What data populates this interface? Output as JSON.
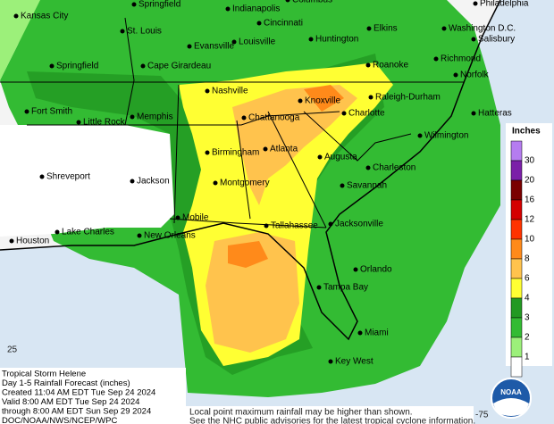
{
  "map": {
    "cities": [
      {
        "label": "Kansas City"
      },
      {
        "label": "Springfield"
      },
      {
        "label": "Indianapolis"
      },
      {
        "label": "Columbus"
      },
      {
        "label": "Philadelphia"
      },
      {
        "label": "St. Louis"
      },
      {
        "label": "Cincinnati"
      },
      {
        "label": "Elkins"
      },
      {
        "label": "Washington D.C."
      },
      {
        "label": "Salisbury"
      },
      {
        "label": "Evansville"
      },
      {
        "label": "Louisville"
      },
      {
        "label": "Huntington"
      },
      {
        "label": "Springfield"
      },
      {
        "label": "Cape Girardeau"
      },
      {
        "label": "Roanoke"
      },
      {
        "label": "Richmond"
      },
      {
        "label": "Norfolk"
      },
      {
        "label": "Nashville"
      },
      {
        "label": "Knoxville"
      },
      {
        "label": "Fort Smith"
      },
      {
        "label": "Little Rock"
      },
      {
        "label": "Memphis"
      },
      {
        "label": "Chattanooga"
      },
      {
        "label": "Charlotte"
      },
      {
        "label": "Raleigh-Durham"
      },
      {
        "label": "Hatteras"
      },
      {
        "label": "Wilmington"
      },
      {
        "label": "Birmingham"
      },
      {
        "label": "Atlanta"
      },
      {
        "label": "Augusta"
      },
      {
        "label": "Charleston"
      },
      {
        "label": "Shreveport"
      },
      {
        "label": "Jackson"
      },
      {
        "label": "Montgomery"
      },
      {
        "label": "Savannah"
      },
      {
        "label": "Mobile"
      },
      {
        "label": "Tallahassee"
      },
      {
        "label": "Jacksonville"
      },
      {
        "label": "Lake Charles"
      },
      {
        "label": "New Orleans"
      },
      {
        "label": "Houston"
      },
      {
        "label": "Orlando"
      },
      {
        "label": "Tampa Bay"
      },
      {
        "label": "Miami"
      },
      {
        "label": "Key West"
      }
    ],
    "legend": {
      "title": "Inches",
      "items": [
        {
          "value": 30,
          "color": "#b57cf0"
        },
        {
          "value": 20,
          "color": "#7b1fa8"
        },
        {
          "value": 16,
          "color": "#7a0000"
        },
        {
          "value": 12,
          "color": "#d40000"
        },
        {
          "value": 10,
          "color": "#ff3300"
        },
        {
          "value": 8,
          "color": "#ff8a1a"
        },
        {
          "value": 6,
          "color": "#ffc34d"
        },
        {
          "value": 4,
          "color": "#ffff33"
        },
        {
          "value": 3,
          "color": "#229922"
        },
        {
          "value": 2,
          "color": "#33bb33"
        },
        {
          "value": 1,
          "color": "#9cf07a"
        }
      ]
    },
    "info": {
      "lines": [
        "Tropical Storm Helene",
        "Day 1-5 Rainfall Forecast (inches)",
        "Created 11:04 AM EDT Tue Sep 24 2024",
        "Valid 8:00 AM EDT Tue Sep 24 2024",
        "through 8:00 AM EDT Sun Sep 29 2024",
        "DOC/NOAA/NWS/NCEP/WPC"
      ]
    },
    "notes": {
      "lines": [
        "Local point maximum rainfall may be higher than shown.",
        "See the NHC public advisories for the latest tropical cyclone information."
      ]
    },
    "coords": {
      "lat": "25",
      "lon": "-75"
    },
    "logo": "NOAA"
  }
}
